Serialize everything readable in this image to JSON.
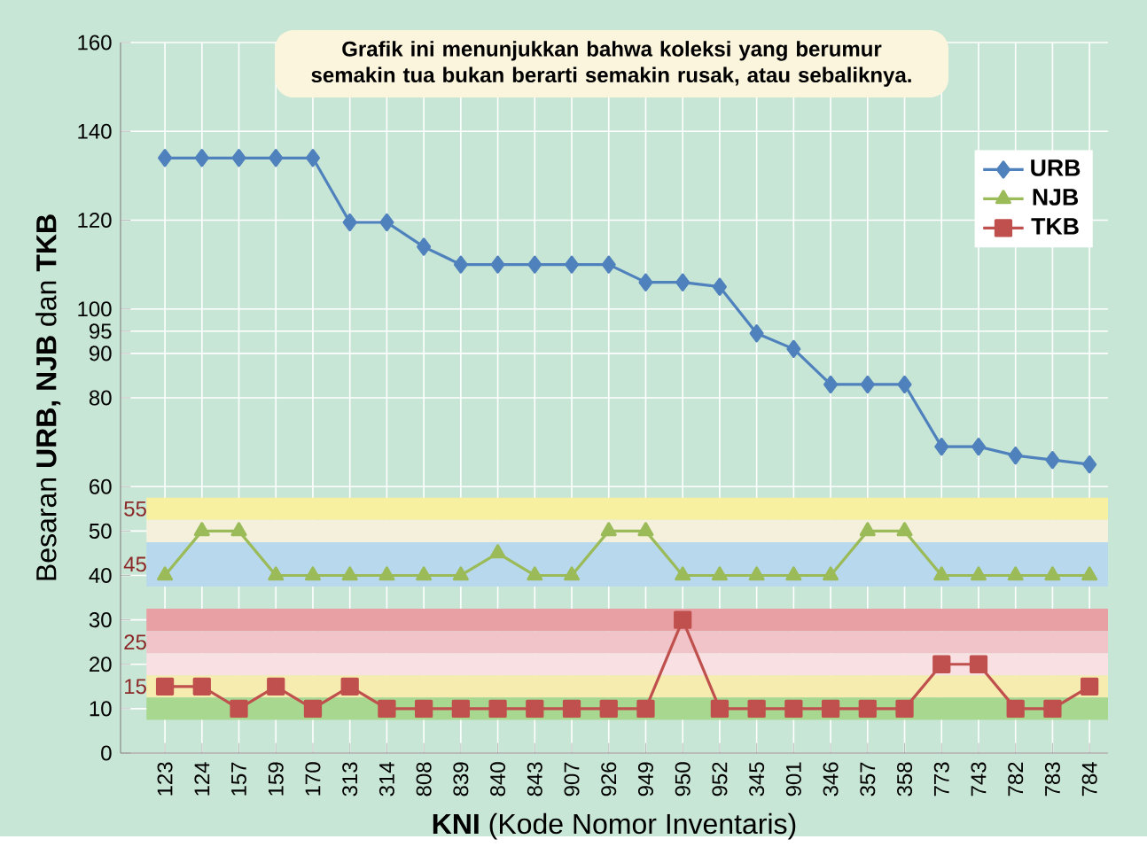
{
  "chart_data": {
    "type": "line",
    "annotations": [
      "Grafik ini menunjukkan bahwa koleksi yang berumur semakin tua bukan berarti semakin rusak, atau sebaliknya."
    ],
    "xlabel": "**KNI** (Kode Nomor Inventaris)",
    "ylabel": "Besaran **URB, NJB** dan **TKB**",
    "categories": [
      "123",
      "124",
      "157",
      "159",
      "170",
      "313",
      "314",
      "808",
      "839",
      "840",
      "843",
      "907",
      "926",
      "949",
      "950",
      "952",
      "345",
      "901",
      "346",
      "357",
      "358",
      "773",
      "743",
      "782",
      "783",
      "784"
    ],
    "series": [
      {
        "name": "URB",
        "color": "#4f81bd",
        "marker": "diamond",
        "values": [
          134,
          134,
          134,
          134,
          134,
          119.5,
          119.5,
          114,
          110,
          110,
          110,
          110,
          110,
          106,
          106,
          105,
          94.5,
          91,
          83,
          83,
          83,
          69,
          69,
          67,
          66,
          65
        ]
      },
      {
        "name": "NJB",
        "color": "#9bbb59",
        "marker": "triangle",
        "values": [
          40,
          50,
          50,
          40,
          40,
          40,
          40,
          40,
          40,
          45,
          40,
          40,
          50,
          50,
          40,
          40,
          40,
          40,
          40,
          50,
          50,
          40,
          40,
          40,
          40,
          40
        ]
      },
      {
        "name": "TKB",
        "color": "#c0504d",
        "marker": "square",
        "values": [
          15,
          15,
          10,
          15,
          10,
          15,
          10,
          10,
          10,
          10,
          10,
          10,
          10,
          10,
          30,
          10,
          10,
          10,
          10,
          10,
          10,
          20,
          20,
          10,
          10,
          15
        ]
      }
    ],
    "ylim": [
      0,
      160
    ],
    "yticks": [
      0,
      10,
      20,
      30,
      40,
      50,
      60,
      80,
      90,
      95,
      100,
      120,
      140,
      160
    ],
    "bands": [
      {
        "axis": "y",
        "from": 52.5,
        "to": 57.5,
        "label": "55",
        "color": "#f7f0a0"
      },
      {
        "axis": "y",
        "from": 47.5,
        "to": 52.5,
        "color": "#f5f0dc"
      },
      {
        "axis": "y",
        "from": 37.5,
        "to": 47.5,
        "label": "45",
        "color": "#b8d8ee"
      },
      {
        "axis": "y",
        "from": 27.5,
        "to": 32.5,
        "color": "#e8a0a4"
      },
      {
        "axis": "y",
        "from": 22.5,
        "to": 27.5,
        "label": "25",
        "color": "#f0c4c8"
      },
      {
        "axis": "y",
        "from": 17.5,
        "to": 22.5,
        "color": "#f9e0e2"
      },
      {
        "axis": "y",
        "from": 12.5,
        "to": 17.5,
        "label": "15",
        "color": "#f7ecb0"
      },
      {
        "axis": "y",
        "from": 7.5,
        "to": 12.5,
        "color": "#a8d890"
      }
    ],
    "grid": true,
    "legend": "right"
  }
}
